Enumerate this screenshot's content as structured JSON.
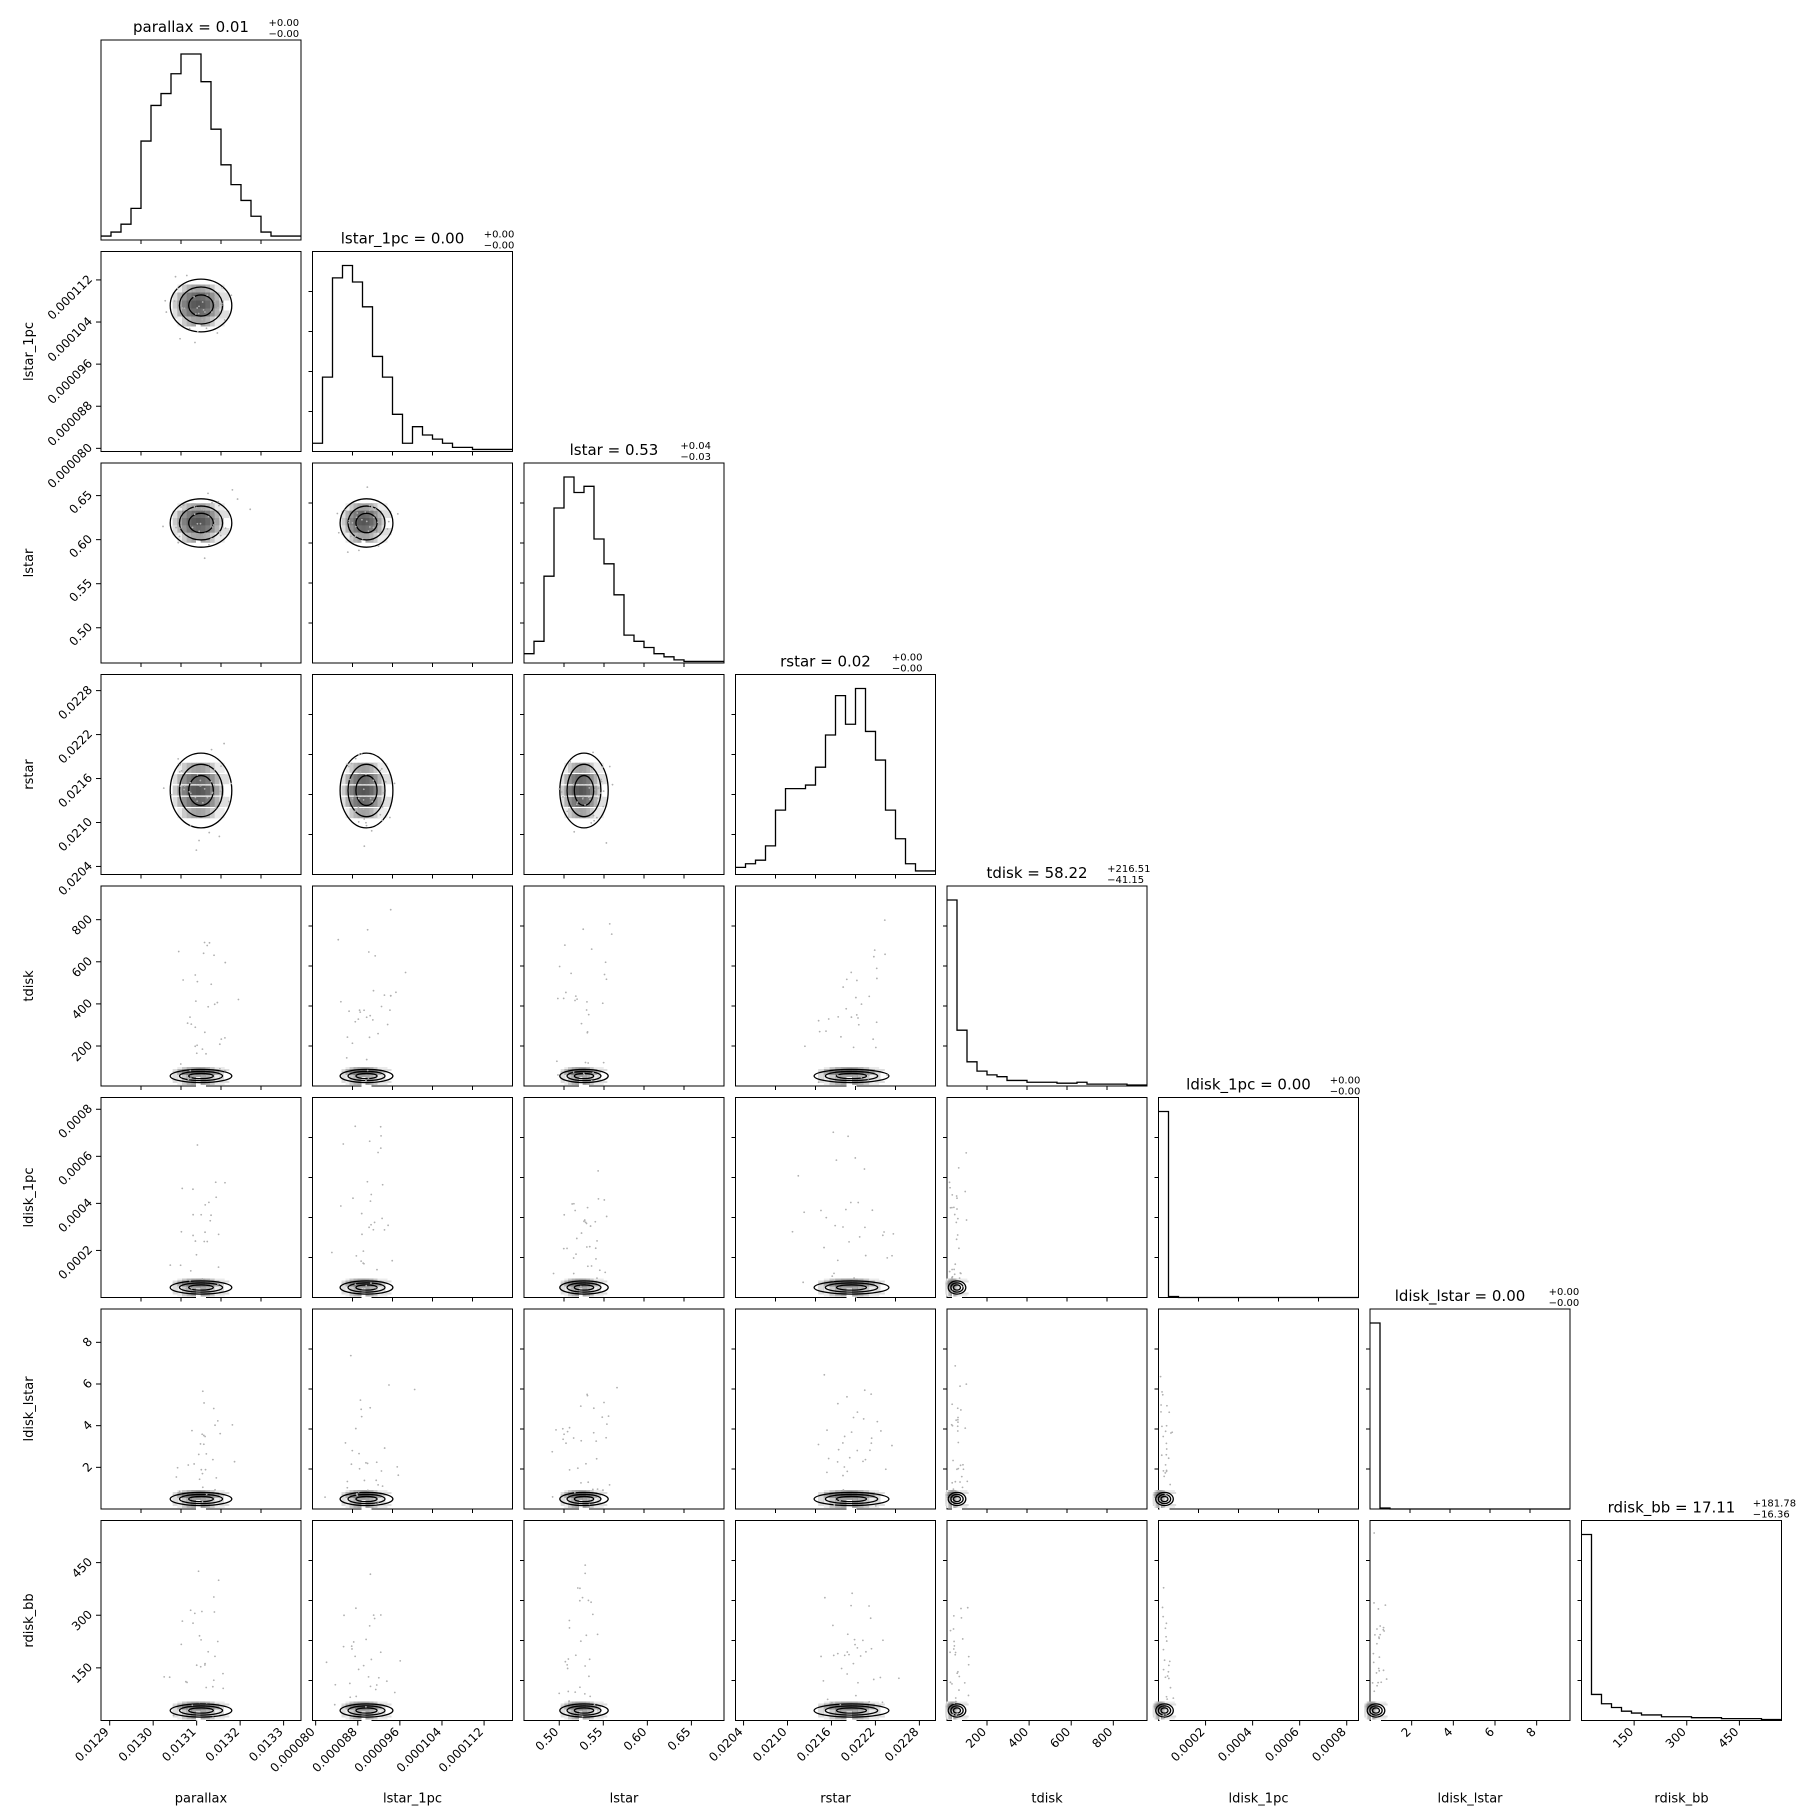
{
  "chart_data": {
    "type": "corner",
    "parameters": [
      {
        "name": "parallax",
        "axis_label": "parallax",
        "range": [
          0.01288,
          0.01334
        ],
        "ticks": [
          "0.0129",
          "0.0130",
          "0.0131",
          "0.0132",
          "0.0133"
        ],
        "tick_values": [
          0.0129,
          0.013,
          0.0131,
          0.0132,
          0.0133
        ],
        "title_base": "parallax = 0.01",
        "title_plus": "+0.00",
        "title_minus": "−0.00"
      },
      {
        "name": "lstar_1pc",
        "axis_label": "lstar_1pc",
        "range": [
          7.94e-05,
          0.0001174
        ],
        "ticks": [
          "0.000080",
          "0.000088",
          "0.000096",
          "0.000104",
          "0.000112"
        ],
        "tick_values": [
          8e-05,
          8.8e-05,
          9.6e-05,
          0.000104,
          0.000112
        ],
        "title_base": "lstar_1pc = 0.00",
        "title_plus": "+0.00",
        "title_minus": "−0.00"
      },
      {
        "name": "lstar",
        "axis_label": "lstar",
        "range": [
          0.46,
          0.687
        ],
        "ticks": [
          "0.50",
          "0.55",
          "0.60",
          "0.65"
        ],
        "tick_values": [
          0.5,
          0.55,
          0.6,
          0.65
        ],
        "title_base": "lstar = 0.53",
        "title_plus": "+0.04",
        "title_minus": "−0.03"
      },
      {
        "name": "rstar",
        "axis_label": "rstar",
        "range": [
          0.02029,
          0.02302
        ],
        "ticks": [
          "0.0204",
          "0.0210",
          "0.0216",
          "0.0222",
          "0.0228"
        ],
        "tick_values": [
          0.0204,
          0.021,
          0.0216,
          0.0222,
          0.0228
        ],
        "title_base": "rstar = 0.02",
        "title_plus": "+0.00",
        "title_minus": "−0.00"
      },
      {
        "name": "tdisk",
        "axis_label": "tdisk",
        "range": [
          10,
          960
        ],
        "ticks": [
          "200",
          "400",
          "600",
          "800"
        ],
        "tick_values": [
          200,
          400,
          600,
          800
        ],
        "title_base": "tdisk = 58.22",
        "title_plus": "+216.51",
        "title_minus": "−41.15"
      },
      {
        "name": "ldisk_1pc",
        "axis_label": "ldisk_1pc",
        "range": [
          0.0,
          0.00085
        ],
        "ticks": [
          "0.0002",
          "0.0004",
          "0.0006",
          "0.0008"
        ],
        "tick_values": [
          0.0002,
          0.0004,
          0.0006,
          0.0008
        ],
        "title_base": "ldisk_1pc = 0.00",
        "title_plus": "+0.00",
        "title_minus": "−0.00"
      },
      {
        "name": "ldisk_lstar",
        "axis_label": "ldisk_lstar",
        "range": [
          0.0,
          9.6
        ],
        "ticks": [
          "2",
          "4",
          "6",
          "8"
        ],
        "tick_values": [
          2,
          4,
          6,
          8
        ],
        "title_base": "ldisk_lstar = 0.00",
        "title_plus": "+0.00",
        "title_minus": "−0.00"
      },
      {
        "name": "rdisk_bb",
        "axis_label": "rdisk_bb",
        "range": [
          0.0,
          570.0
        ],
        "ticks": [
          "150",
          "300",
          "450"
        ],
        "tick_values": [
          150,
          300,
          450
        ],
        "title_base": "rdisk_bb = 17.11",
        "title_plus": "+181.78",
        "title_minus": "−16.36"
      }
    ],
    "histograms": [
      {
        "parameter": "parallax",
        "counts": [
          1,
          2,
          4,
          8,
          25,
          34,
          37,
          42,
          47,
          47,
          40,
          28,
          19,
          14,
          10,
          6,
          2,
          1,
          1,
          1
        ]
      },
      {
        "parameter": "lstar_1pc",
        "counts": [
          2,
          18,
          42,
          45,
          41,
          35,
          23,
          18,
          9,
          2,
          6,
          4,
          3,
          2,
          1,
          1,
          0.5,
          0.5,
          0.5,
          0.5
        ]
      },
      {
        "parameter": "lstar",
        "counts": [
          3,
          7,
          28,
          50,
          60,
          55,
          57,
          40,
          32,
          22,
          9,
          7,
          5,
          3,
          2,
          1,
          0.5,
          0.5,
          0.5,
          0.5
        ]
      },
      {
        "parameter": "rstar",
        "counts": [
          2,
          3,
          4,
          8,
          18,
          24,
          24,
          25,
          30,
          39,
          50,
          42,
          52,
          40,
          32,
          18,
          10,
          3,
          1,
          1
        ]
      },
      {
        "parameter": "tdisk",
        "counts": [
          100,
          30,
          13,
          8,
          6,
          5,
          3,
          3,
          2,
          2,
          2,
          1.5,
          1.5,
          2,
          1,
          1,
          1,
          1,
          0.5,
          0.5
        ]
      },
      {
        "parameter": "ldisk_1pc",
        "counts": [
          100,
          0.5,
          0,
          0,
          0,
          0,
          0,
          0,
          0,
          0,
          0,
          0,
          0,
          0,
          0,
          0,
          0,
          0,
          0,
          0
        ]
      },
      {
        "parameter": "ldisk_lstar",
        "counts": [
          100,
          0.5,
          0,
          0,
          0,
          0,
          0,
          0,
          0,
          0,
          0,
          0,
          0,
          0,
          0,
          0,
          0,
          0,
          0,
          0
        ]
      },
      {
        "parameter": "rdisk_bb",
        "counts": [
          100,
          14,
          9,
          7,
          5,
          4,
          3,
          3,
          2,
          2,
          2,
          1.5,
          1.5,
          1.5,
          1,
          1,
          1,
          1,
          0.5,
          0.5
        ]
      }
    ],
    "grid": false,
    "legend": "none",
    "colors": {
      "line": "#000000",
      "density": "#000000",
      "scatter": "#b0b0b0"
    }
  }
}
